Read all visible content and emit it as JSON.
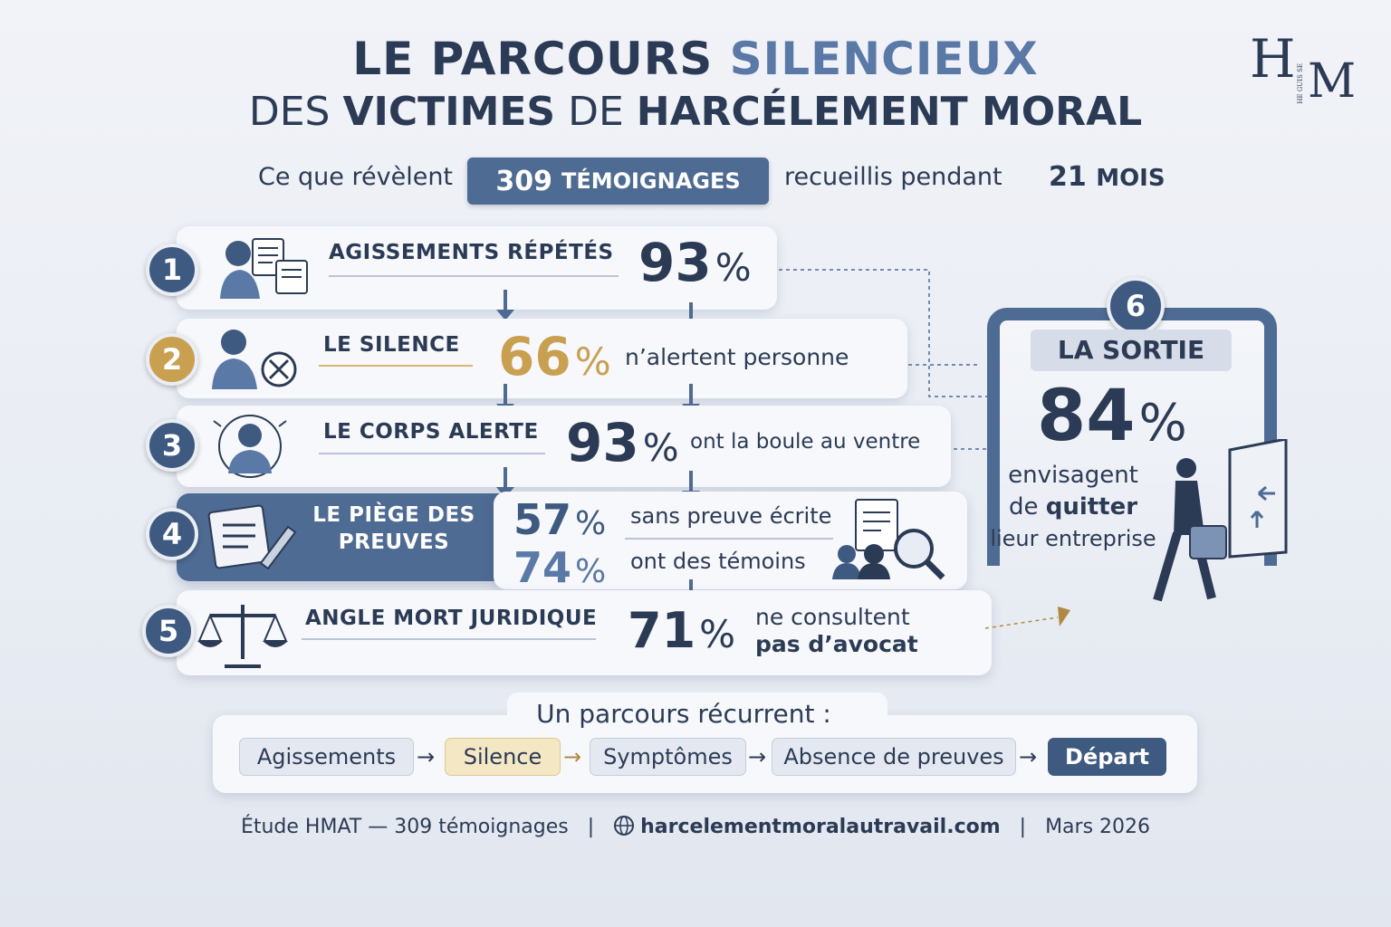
{
  "title": {
    "line1_a": "LE PARCOURS",
    "line1_b": "SILENCIEUX",
    "line2_a": "DES",
    "line2_b": "VICTIMES",
    "line2_c": "DE",
    "line2_d": "HARCÉLEMENT MORAL"
  },
  "logo": {
    "letters_h": "H",
    "letters_m": "M",
    "tiny": "HE GUIS SE"
  },
  "subtitle": {
    "pre": "Ce que révèlent",
    "badge_num": "309",
    "badge_label": "TÉMOIGNAGES",
    "mid": "recueillis pendant",
    "months_num": "21",
    "months_label": "MOIS"
  },
  "steps": [
    {
      "num": "1",
      "label": "AGISSEMENTS RÉPÉTÉS",
      "value": "93",
      "unit": "%"
    },
    {
      "num": "2",
      "label": "LE SILENCE",
      "value": "66",
      "unit": "%",
      "text": "n’alertent personne"
    },
    {
      "num": "3",
      "label": "LE CORPS ALERTE",
      "value": "93",
      "unit": "%",
      "text": "ont la boule au ventre"
    },
    {
      "num": "4",
      "label_a": "LE PIÈGE DES",
      "label_b": "PREUVES",
      "value_a": "57",
      "text_a": "sans preuve écrite",
      "value_b": "74",
      "text_b": "ont des témoins",
      "unit": "%"
    },
    {
      "num": "5",
      "label": "ANGLE MORT JURIDIQUE",
      "value": "71",
      "unit": "%",
      "text_a": "ne consultent",
      "text_b": "pas d’avocat"
    }
  ],
  "exit": {
    "num": "6",
    "label": "LA SORTIE",
    "value": "84",
    "unit": "%",
    "line1": "envisagent",
    "line2_a": "de",
    "line2_b": "quitter",
    "line3": "lieur entreprise"
  },
  "recurrent": {
    "title": "Un parcours récurrent :",
    "chips": [
      "Agissements",
      "Silence",
      "Symptômes",
      "Absence de preuves",
      "Départ"
    ],
    "arrow": "→"
  },
  "footer": {
    "study": "Étude HMAT — 309 témoignages",
    "sep": "|",
    "site": "harcelementmoralautravail.com",
    "date": "Mars 2026"
  },
  "colors": {
    "navy": "#2c3b55",
    "accent": "#4e6b93",
    "gold": "#c9a050"
  }
}
